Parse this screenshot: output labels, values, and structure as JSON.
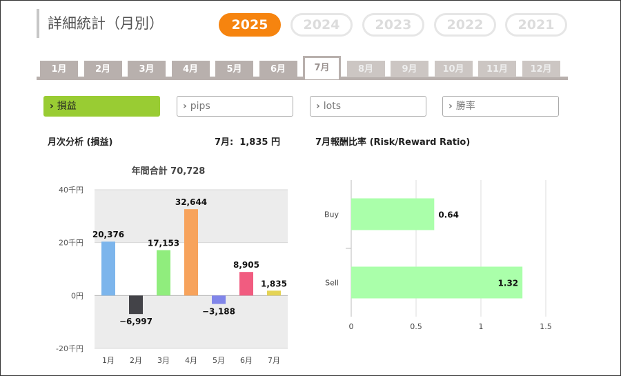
{
  "header": {
    "title": "詳細統計（月別）"
  },
  "years": [
    {
      "label": "2025",
      "active": true
    },
    {
      "label": "2024",
      "active": false
    },
    {
      "label": "2023",
      "active": false
    },
    {
      "label": "2022",
      "active": false
    },
    {
      "label": "2021",
      "active": false
    }
  ],
  "months": [
    {
      "label": "1月",
      "state": "past"
    },
    {
      "label": "2月",
      "state": "past"
    },
    {
      "label": "3月",
      "state": "past"
    },
    {
      "label": "4月",
      "state": "past"
    },
    {
      "label": "5月",
      "state": "past"
    },
    {
      "label": "6月",
      "state": "past"
    },
    {
      "label": "7月",
      "state": "active"
    },
    {
      "label": "8月",
      "state": "future"
    },
    {
      "label": "9月",
      "state": "future"
    },
    {
      "label": "10月",
      "state": "future"
    },
    {
      "label": "11月",
      "state": "future"
    },
    {
      "label": "12月",
      "state": "future"
    }
  ],
  "filters": [
    {
      "label": "損益",
      "active": true
    },
    {
      "label": "pips",
      "active": false
    },
    {
      "label": "lots",
      "active": false
    },
    {
      "label": "勝率",
      "active": false
    }
  ],
  "monthly": {
    "section_label": "月次分析 (損益)",
    "current_label": "7月:  1,835 円"
  },
  "rr": {
    "section_label": "7月報酬比率 (Risk/Reward Ratio)"
  },
  "colors": {
    "accent": "#f6840f",
    "active_filter": "#99cc33",
    "tab": "#b8b0ad",
    "rr_bar": "#aaffaa"
  },
  "chart_data": [
    {
      "type": "bar",
      "title": "年間合計 70,728",
      "categories": [
        "1月",
        "2月",
        "3月",
        "4月",
        "5月",
        "6月",
        "7月"
      ],
      "values": [
        20376,
        -6997,
        17153,
        32644,
        -3188,
        8905,
        1835
      ],
      "value_labels": [
        "20,376",
        "−6,997",
        "17,153",
        "32,644",
        "−3,188",
        "8,905",
        "1,835"
      ],
      "bar_colors": [
        "#7cb5ec",
        "#434348",
        "#90ed7d",
        "#f7a35c",
        "#8085e9",
        "#f15c80",
        "#e4d354"
      ],
      "yticks": [
        {
          "value": 40000,
          "label": "40千円"
        },
        {
          "value": 20000,
          "label": "20千円"
        },
        {
          "value": 0,
          "label": "0円"
        },
        {
          "value": -20000,
          "label": "-20千円"
        }
      ],
      "ylim": [
        -20000,
        40000
      ],
      "grid": true
    },
    {
      "type": "bar",
      "orientation": "horizontal",
      "categories": [
        "Buy",
        "Sell"
      ],
      "values": [
        0.64,
        1.32
      ],
      "value_labels": [
        "0.64",
        "1.32"
      ],
      "xticks": [
        {
          "value": 0,
          "label": "0"
        },
        {
          "value": 0.5,
          "label": "0.5"
        },
        {
          "value": 1,
          "label": "1"
        },
        {
          "value": 1.5,
          "label": "1.5"
        }
      ],
      "xlim": [
        0,
        1.5
      ],
      "grid": true
    }
  ]
}
